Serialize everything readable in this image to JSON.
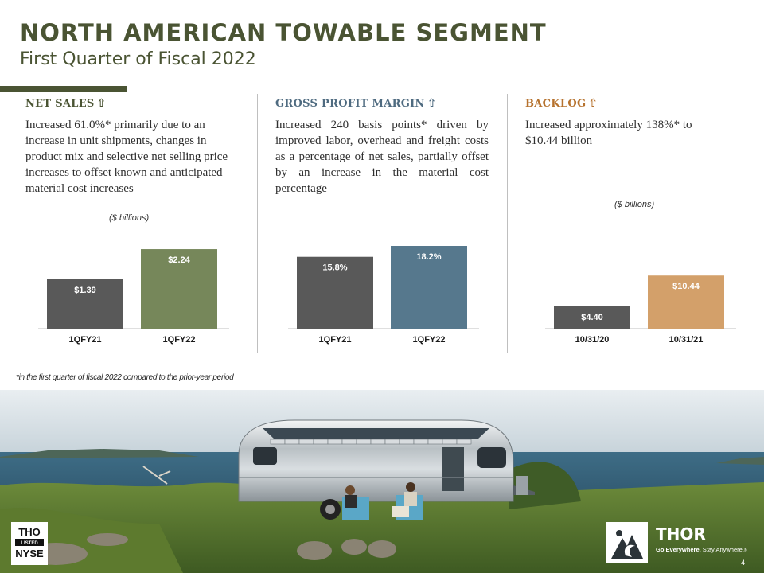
{
  "header": {
    "title": "NORTH AMERICAN TOWABLE SEGMENT",
    "subtitle": "First Quarter of Fiscal 2022"
  },
  "columns": [
    {
      "heading": "NET SALES",
      "heading_color": "#4a5433",
      "arrow": "⇧",
      "body": "Increased 61.0%* primarily due to an increase in unit shipments, changes in product mix and selective net selling price increases to offset known and anticipated material cost increases",
      "unit_label": "($ billions)"
    },
    {
      "heading": "GROSS PROFIT MARGIN",
      "heading_color": "#4f6b80",
      "arrow": "⇧",
      "body": "Increased 240 basis points* driven by improved labor, overhead and freight costs as a percentage of net sales, partially offset by an increase in the material cost percentage",
      "unit_label": ""
    },
    {
      "heading": "BACKLOG",
      "heading_color": "#b6722e",
      "arrow": "⇧",
      "body": "Increased approximately 138%* to $10.44 billion",
      "unit_label": "($ billions)"
    }
  ],
  "chart_data": [
    {
      "type": "bar",
      "categories": [
        "1QFY21",
        "1QFY22"
      ],
      "values": [
        1.39,
        2.24
      ],
      "data_labels": [
        "$1.39",
        "$2.24"
      ],
      "colors": [
        "#595959",
        "#76875a"
      ],
      "ylim": [
        0,
        2.6
      ]
    },
    {
      "type": "bar",
      "categories": [
        "1QFY21",
        "1QFY22"
      ],
      "values": [
        15.8,
        18.2
      ],
      "data_labels": [
        "15.8%",
        "18.2%"
      ],
      "colors": [
        "#595959",
        "#56788d"
      ],
      "ylim": [
        0,
        20.3
      ]
    },
    {
      "type": "bar",
      "categories": [
        "10/31/20",
        "10/31/21"
      ],
      "values": [
        4.4,
        10.44
      ],
      "data_labels": [
        "$4.40",
        "$10.44"
      ],
      "colors": [
        "#595959",
        "#d3a06a"
      ],
      "ylim": [
        0,
        19.7
      ]
    }
  ],
  "footnote": "*in the first quarter of fiscal 2022 compared to the prior-year period",
  "badge": {
    "line1": "THO",
    "line2": "LISTED",
    "line3": "NYSE"
  },
  "brand": {
    "name": "THOR",
    "tagline_bold": "Go Everywhere.",
    "tagline_light": " Stay Anywhere.",
    "trademark": "®"
  },
  "page_number": "4",
  "colors": {
    "olive": "#4a5433",
    "slate": "#4f6b80",
    "copper": "#b6722e"
  }
}
